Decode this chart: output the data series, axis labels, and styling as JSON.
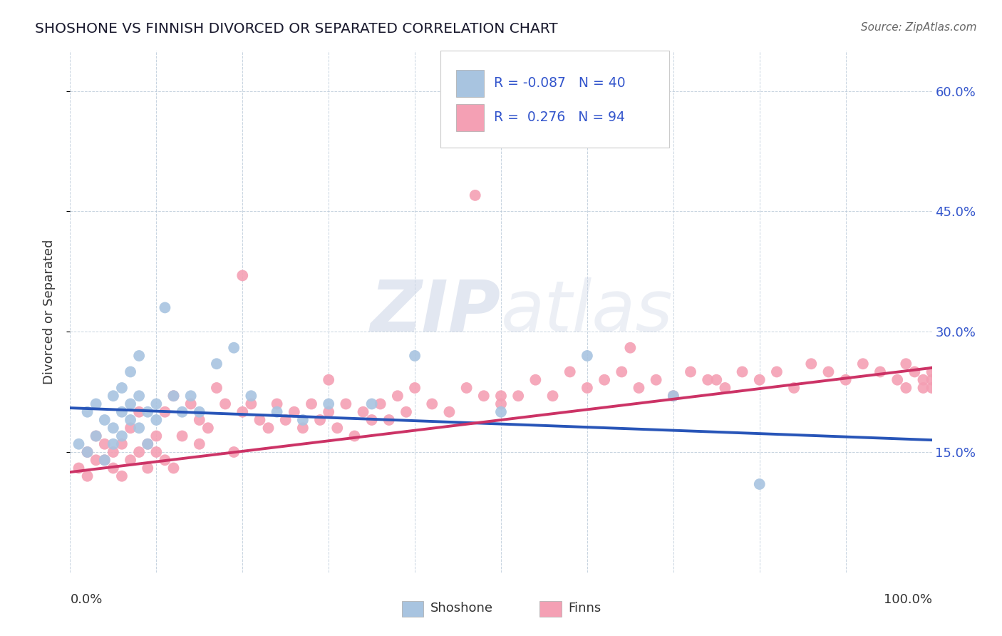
{
  "title": "SHOSHONE VS FINNISH DIVORCED OR SEPARATED CORRELATION CHART",
  "source": "Source: ZipAtlas.com",
  "ylabel": "Divorced or Separated",
  "xlim": [
    0.0,
    1.0
  ],
  "ylim": [
    0.0,
    0.65
  ],
  "ytick_vals": [
    0.15,
    0.3,
    0.45,
    0.6
  ],
  "ytick_labels": [
    "15.0%",
    "30.0%",
    "45.0%",
    "60.0%"
  ],
  "shoshone_color": "#a8c4e0",
  "finns_color": "#f4a0b4",
  "shoshone_line_color": "#2855b8",
  "finns_line_color": "#cc3366",
  "legend_text_color": "#3355cc",
  "background_color": "#ffffff",
  "r_shoshone": -0.087,
  "n_shoshone": 40,
  "r_finns": 0.276,
  "n_finns": 94,
  "shoshone_x": [
    0.01,
    0.02,
    0.02,
    0.03,
    0.03,
    0.04,
    0.04,
    0.05,
    0.05,
    0.05,
    0.06,
    0.06,
    0.06,
    0.07,
    0.07,
    0.07,
    0.08,
    0.08,
    0.08,
    0.09,
    0.09,
    0.1,
    0.1,
    0.11,
    0.12,
    0.13,
    0.14,
    0.15,
    0.17,
    0.19,
    0.21,
    0.24,
    0.27,
    0.3,
    0.35,
    0.4,
    0.5,
    0.6,
    0.7,
    0.8
  ],
  "shoshone_y": [
    0.16,
    0.2,
    0.15,
    0.21,
    0.17,
    0.19,
    0.14,
    0.22,
    0.18,
    0.16,
    0.23,
    0.2,
    0.17,
    0.25,
    0.21,
    0.19,
    0.22,
    0.18,
    0.27,
    0.2,
    0.16,
    0.21,
    0.19,
    0.33,
    0.22,
    0.2,
    0.22,
    0.2,
    0.26,
    0.28,
    0.22,
    0.2,
    0.19,
    0.21,
    0.21,
    0.27,
    0.2,
    0.27,
    0.22,
    0.11
  ],
  "finns_x": [
    0.01,
    0.02,
    0.02,
    0.03,
    0.03,
    0.04,
    0.04,
    0.05,
    0.05,
    0.06,
    0.06,
    0.07,
    0.07,
    0.08,
    0.08,
    0.09,
    0.09,
    0.1,
    0.1,
    0.11,
    0.11,
    0.12,
    0.12,
    0.13,
    0.14,
    0.15,
    0.15,
    0.16,
    0.17,
    0.18,
    0.19,
    0.2,
    0.21,
    0.22,
    0.23,
    0.24,
    0.25,
    0.26,
    0.27,
    0.28,
    0.29,
    0.3,
    0.31,
    0.32,
    0.33,
    0.34,
    0.35,
    0.36,
    0.37,
    0.38,
    0.39,
    0.4,
    0.42,
    0.44,
    0.46,
    0.48,
    0.5,
    0.52,
    0.54,
    0.56,
    0.58,
    0.6,
    0.62,
    0.64,
    0.66,
    0.68,
    0.7,
    0.72,
    0.74,
    0.76,
    0.78,
    0.8,
    0.82,
    0.84,
    0.86,
    0.88,
    0.9,
    0.92,
    0.94,
    0.96,
    0.97,
    0.97,
    0.98,
    0.99,
    0.99,
    1.0,
    1.0,
    1.0,
    0.47,
    0.2,
    0.3,
    0.5,
    0.65,
    0.75
  ],
  "finns_y": [
    0.13,
    0.15,
    0.12,
    0.14,
    0.17,
    0.14,
    0.16,
    0.15,
    0.13,
    0.16,
    0.12,
    0.14,
    0.18,
    0.15,
    0.2,
    0.16,
    0.13,
    0.17,
    0.15,
    0.14,
    0.2,
    0.13,
    0.22,
    0.17,
    0.21,
    0.16,
    0.19,
    0.18,
    0.23,
    0.21,
    0.15,
    0.2,
    0.21,
    0.19,
    0.18,
    0.21,
    0.19,
    0.2,
    0.18,
    0.21,
    0.19,
    0.2,
    0.18,
    0.21,
    0.17,
    0.2,
    0.19,
    0.21,
    0.19,
    0.22,
    0.2,
    0.23,
    0.21,
    0.2,
    0.23,
    0.22,
    0.21,
    0.22,
    0.24,
    0.22,
    0.25,
    0.23,
    0.24,
    0.25,
    0.23,
    0.24,
    0.22,
    0.25,
    0.24,
    0.23,
    0.25,
    0.24,
    0.25,
    0.23,
    0.26,
    0.25,
    0.24,
    0.26,
    0.25,
    0.24,
    0.23,
    0.26,
    0.25,
    0.24,
    0.23,
    0.25,
    0.24,
    0.23,
    0.47,
    0.37,
    0.24,
    0.22,
    0.28,
    0.24
  ]
}
